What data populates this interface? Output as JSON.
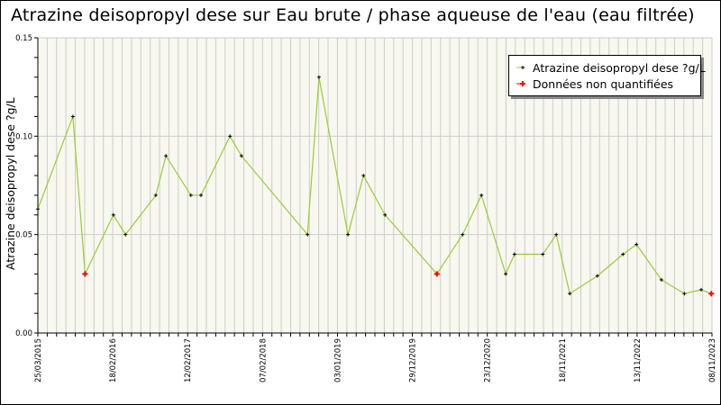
{
  "title": "Atrazine deisopropyl dese sur Eau brute / phase aqueuse de l'eau (eau filtrée)",
  "colors": {
    "line": "#99cc33",
    "point": "#000000",
    "non_quantified": "#ff0000",
    "plot_bg": "#f8f8f0",
    "grid": "#cccccc"
  },
  "legend": {
    "items": [
      {
        "label": "Atrazine deisopropyl dese ?g/L",
        "type": "series"
      },
      {
        "label": "Données non quantifiées",
        "type": "non_quantified"
      }
    ]
  },
  "chart_data": {
    "type": "line",
    "title": "Atrazine deisopropyl dese sur Eau brute / phase aqueuse de l'eau (eau filtrée)",
    "xlabel": "",
    "ylabel": "Atrazine deisopropyl dese ?g/L",
    "ylim": [
      0,
      0.15
    ],
    "yticks": [
      "0.00",
      "0.05",
      "0.10",
      "0.15"
    ],
    "xtick_labels": [
      "25/03/2015",
      "18/02/2016",
      "12/02/2017",
      "07/02/2018",
      "03/01/2019",
      "29/12/2019",
      "23/12/2020",
      "18/11/2021",
      "13/11/2022",
      "08/11/2023"
    ],
    "grid": true,
    "legend_position": "upper right",
    "series": [
      {
        "name": "Atrazine deisopropyl dese ?g/L",
        "points": [
          {
            "x": 0.0,
            "y": 0.063,
            "nq": false
          },
          {
            "x": 0.052,
            "y": 0.11,
            "nq": false
          },
          {
            "x": 0.07,
            "y": 0.03,
            "nq": true
          },
          {
            "x": 0.112,
            "y": 0.06,
            "nq": false
          },
          {
            "x": 0.13,
            "y": 0.05,
            "nq": false
          },
          {
            "x": 0.175,
            "y": 0.07,
            "nq": false
          },
          {
            "x": 0.19,
            "y": 0.09,
            "nq": false
          },
          {
            "x": 0.227,
            "y": 0.07,
            "nq": false
          },
          {
            "x": 0.242,
            "y": 0.07,
            "nq": false
          },
          {
            "x": 0.285,
            "y": 0.1,
            "nq": false
          },
          {
            "x": 0.302,
            "y": 0.09,
            "nq": false
          },
          {
            "x": 0.4,
            "y": 0.05,
            "nq": false
          },
          {
            "x": 0.417,
            "y": 0.13,
            "nq": false
          },
          {
            "x": 0.46,
            "y": 0.05,
            "nq": false
          },
          {
            "x": 0.483,
            "y": 0.08,
            "nq": false
          },
          {
            "x": 0.515,
            "y": 0.06,
            "nq": false
          },
          {
            "x": 0.592,
            "y": 0.03,
            "nq": true
          },
          {
            "x": 0.63,
            "y": 0.05,
            "nq": false
          },
          {
            "x": 0.658,
            "y": 0.07,
            "nq": false
          },
          {
            "x": 0.694,
            "y": 0.03,
            "nq": false
          },
          {
            "x": 0.707,
            "y": 0.04,
            "nq": false
          },
          {
            "x": 0.749,
            "y": 0.04,
            "nq": false
          },
          {
            "x": 0.769,
            "y": 0.05,
            "nq": false
          },
          {
            "x": 0.789,
            "y": 0.02,
            "nq": false
          },
          {
            "x": 0.83,
            "y": 0.029,
            "nq": false
          },
          {
            "x": 0.868,
            "y": 0.04,
            "nq": false
          },
          {
            "x": 0.888,
            "y": 0.045,
            "nq": false
          },
          {
            "x": 0.925,
            "y": 0.027,
            "nq": false
          },
          {
            "x": 0.959,
            "y": 0.02,
            "nq": false
          },
          {
            "x": 0.984,
            "y": 0.022,
            "nq": false
          },
          {
            "x": 0.999,
            "y": 0.02,
            "nq": true
          }
        ]
      }
    ]
  }
}
